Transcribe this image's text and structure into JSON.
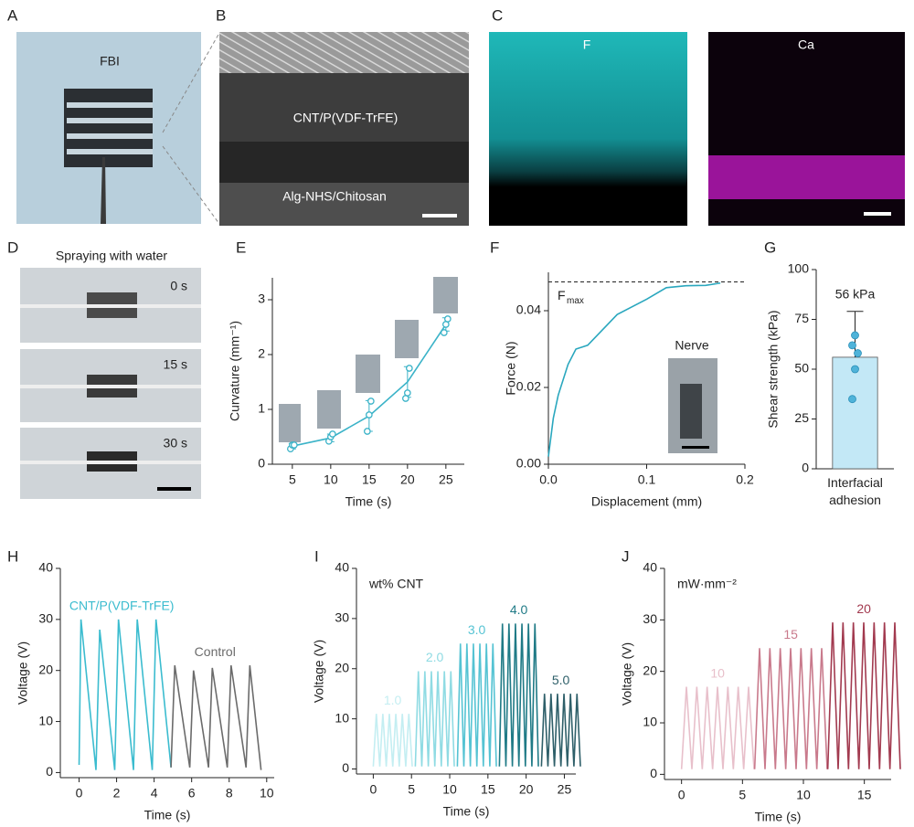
{
  "panels": {
    "A": {
      "letter": "A",
      "label": "FBI"
    },
    "B": {
      "letter": "B",
      "labels": [
        "CNT/P(VDF-TrFE)",
        "Alg-NHS/Chitosan"
      ]
    },
    "C": {
      "letter": "C",
      "labels": [
        "F",
        "Ca"
      ]
    },
    "D": {
      "letter": "D",
      "title": "Spraying with water",
      "times": [
        "0 s",
        "15 s",
        "30 s"
      ]
    }
  },
  "chart_data": [
    {
      "type": "line",
      "panel": "E",
      "xlabel": "Time (s)",
      "ylabel": "Curvature (mm⁻¹)",
      "color": "#3bb3c8",
      "x": [
        5,
        10,
        15,
        20,
        25
      ],
      "values": [
        0.33,
        0.48,
        0.88,
        1.5,
        2.55
      ],
      "errors": [
        0.05,
        0.07,
        0.28,
        0.28,
        0.12
      ],
      "points": [
        [
          0.28,
          0.35,
          0.35
        ],
        [
          0.42,
          0.5,
          0.55
        ],
        [
          0.6,
          0.9,
          1.15
        ],
        [
          1.2,
          1.3,
          1.75
        ],
        [
          2.4,
          2.55,
          2.65
        ]
      ],
      "xlim": [
        2.4,
        27.4
      ],
      "xticks": [
        5,
        10,
        15,
        20,
        25
      ],
      "ylim": [
        0,
        3.4
      ],
      "yticks": [
        0,
        1,
        2,
        3
      ]
    },
    {
      "type": "line",
      "panel": "F",
      "xlabel": "Displacement (mm)",
      "ylabel": "Force (N)",
      "color": "#2aa7be",
      "x": [
        0,
        0.005,
        0.01,
        0.02,
        0.028,
        0.04,
        0.07,
        0.1,
        0.12,
        0.14,
        0.16,
        0.175
      ],
      "values": [
        0.002,
        0.012,
        0.018,
        0.026,
        0.03,
        0.031,
        0.039,
        0.043,
        0.046,
        0.0465,
        0.0466,
        0.0472
      ],
      "fmax": 0.0475,
      "annotation": "F",
      "annotation_sub": "max",
      "inset_label": "Nerve",
      "xlim": [
        0,
        0.2
      ],
      "xticks": [
        {
          "value": 0,
          "label": "0.0"
        },
        {
          "value": 0.1,
          "label": "0.1"
        },
        {
          "value": 0.2,
          "label": "0.2"
        }
      ],
      "ylim": [
        0,
        0.05
      ],
      "yticks": [
        {
          "value": 0,
          "label": "0.00"
        },
        {
          "value": 0.02,
          "label": "0.02"
        },
        {
          "value": 0.04,
          "label": "0.04"
        }
      ]
    },
    {
      "type": "bar",
      "panel": "G",
      "ylabel": "Shear strength (kPa)",
      "color": "#c3e8f6",
      "point_color": "#4fb3d9",
      "categories": [
        "Interfacial adhesion"
      ],
      "values": [
        56
      ],
      "value_labels": [
        "56 kPa"
      ],
      "errors": [
        23
      ],
      "points": [
        [
          35,
          50,
          58,
          62,
          67
        ]
      ],
      "ylim": [
        0,
        100
      ],
      "yticks": [
        0,
        25,
        50,
        75,
        100
      ]
    },
    {
      "type": "line",
      "panel": "H",
      "xlabel": "Time (s)",
      "ylabel": "Voltage (V)",
      "series": [
        {
          "name": "CNT/P(VDF-TrFE)",
          "color": "#3bbccf",
          "x": [
            0,
            0.1,
            0.9,
            1.1,
            1.9,
            2.1,
            2.9,
            3.1,
            3.9,
            4.1,
            4.9
          ],
          "values": [
            1.5,
            30,
            0.5,
            28,
            0.5,
            30,
            0.5,
            30,
            0.5,
            30,
            1
          ]
        },
        {
          "name": "Control",
          "color": "#6b6b6b",
          "x": [
            4.9,
            5.1,
            5.9,
            6.1,
            6.9,
            7.1,
            7.9,
            8.1,
            8.9,
            9.1,
            9.7
          ],
          "values": [
            1,
            21,
            1,
            20,
            1,
            20.5,
            1,
            21,
            1,
            21,
            0.5
          ]
        }
      ],
      "xlim": [
        -1,
        10.4
      ],
      "xticks": [
        0,
        2,
        4,
        6,
        8,
        10
      ],
      "ylim": [
        -1,
        40
      ],
      "yticks": [
        0,
        10,
        20,
        30,
        40
      ]
    },
    {
      "type": "line",
      "panel": "I",
      "xlabel": "Time (s)",
      "ylabel": "Voltage (V)",
      "annotation": "wt% CNT",
      "series": [
        {
          "name": "1.0",
          "color": "#c4eef2",
          "x": [
            0,
            0.4,
            0.85,
            1.25,
            1.7,
            2.1,
            2.55,
            2.95,
            3.4,
            3.8,
            4.25,
            4.65,
            5.1
          ],
          "values": [
            0.5,
            11,
            0.5,
            11,
            0.5,
            11,
            0.5,
            11,
            0.5,
            11,
            0.5,
            11,
            0.5
          ]
        },
        {
          "name": "2.0",
          "color": "#8fdbe3",
          "x": [
            5.5,
            5.9,
            6.35,
            6.75,
            7.2,
            7.6,
            8.05,
            8.45,
            8.9,
            9.3,
            9.75,
            10.15,
            10.6
          ],
          "values": [
            0.5,
            19.5,
            0.5,
            19.5,
            0.5,
            19.5,
            0.5,
            19.5,
            0.5,
            19.5,
            0.5,
            19.5,
            0.5
          ]
        },
        {
          "name": "3.0",
          "color": "#55c3d3",
          "x": [
            11,
            11.4,
            11.85,
            12.25,
            12.7,
            13.1,
            13.55,
            13.95,
            14.4,
            14.8,
            15.25,
            15.65,
            16.1
          ],
          "values": [
            0.5,
            25,
            0.5,
            25,
            0.5,
            25,
            0.5,
            25,
            0.5,
            25,
            0.5,
            25,
            0.5
          ]
        },
        {
          "name": "4.0",
          "color": "#1f7a86",
          "x": [
            16.5,
            16.9,
            17.35,
            17.75,
            18.2,
            18.6,
            19.05,
            19.45,
            19.9,
            20.3,
            20.75,
            21.15,
            21.6
          ],
          "values": [
            0.5,
            29,
            0.5,
            29,
            0.5,
            29,
            0.5,
            29,
            0.5,
            29,
            0.5,
            29,
            0.5
          ]
        },
        {
          "name": "5.0",
          "color": "#2e5f69",
          "x": [
            22,
            22.4,
            22.85,
            23.25,
            23.7,
            24.1,
            24.55,
            24.95,
            25.4,
            25.8,
            26.25,
            26.65,
            27.1
          ],
          "values": [
            0.5,
            15,
            0.5,
            15,
            0.5,
            15,
            0.5,
            15,
            0.5,
            15,
            0.5,
            15,
            0.5
          ]
        }
      ],
      "xlim": [
        -2.2,
        26.5
      ],
      "xticks": [
        0,
        5,
        10,
        15,
        20,
        25
      ],
      "ylim": [
        -1,
        40
      ],
      "yticks": [
        0,
        10,
        20,
        30,
        40
      ]
    },
    {
      "type": "line",
      "panel": "J",
      "xlabel": "Time (s)",
      "ylabel": "Voltage (V)",
      "annotation": "mW·mm⁻²",
      "series": [
        {
          "name": "10",
          "color": "#e8c0cb",
          "x": [
            0,
            0.4,
            0.85,
            1.25,
            1.7,
            2.1,
            2.55,
            2.95,
            3.4,
            3.8,
            4.25,
            4.65,
            5.1,
            5.5,
            5.95
          ],
          "values": [
            1,
            17,
            1,
            17,
            1,
            17,
            1,
            17,
            1,
            17,
            1,
            17,
            1,
            17,
            1
          ]
        },
        {
          "name": "15",
          "color": "#c97a8c",
          "x": [
            6,
            6.4,
            6.85,
            7.25,
            7.7,
            8.1,
            8.55,
            8.95,
            9.4,
            9.8,
            10.25,
            10.65,
            11.1,
            11.5,
            11.95
          ],
          "values": [
            1,
            24.5,
            1,
            24.5,
            1,
            24.5,
            1,
            24.5,
            1,
            24.5,
            1,
            24.5,
            1,
            24.5,
            1
          ]
        },
        {
          "name": "20",
          "color": "#a23a4f",
          "x": [
            12,
            12.4,
            12.85,
            13.25,
            13.7,
            14.1,
            14.55,
            14.95,
            15.4,
            15.8,
            16.25,
            16.65,
            17.1,
            17.5,
            17.95
          ],
          "values": [
            1,
            29.5,
            1,
            29.5,
            1,
            29.5,
            1,
            29.5,
            1,
            29.5,
            1,
            29.5,
            1,
            29.5,
            1
          ]
        }
      ],
      "xlim": [
        -1.4,
        17.2
      ],
      "xticks": [
        0,
        5,
        10,
        15
      ],
      "ylim": [
        -1,
        40
      ],
      "yticks": [
        0,
        10,
        20,
        30,
        40
      ]
    }
  ]
}
